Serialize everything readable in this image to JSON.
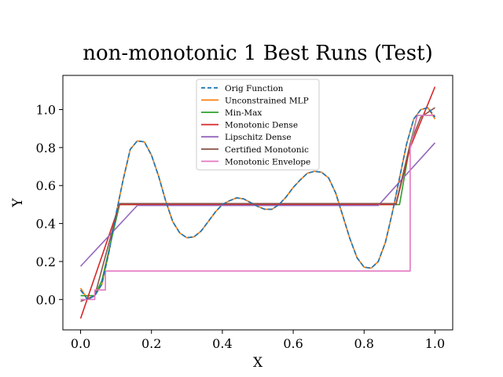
{
  "chart_data": {
    "type": "line",
    "title": "non-monotonic 1 Best Runs (Test)",
    "xlabel": "X",
    "ylabel": "Y",
    "xlim": [
      -0.05,
      1.05
    ],
    "ylim": [
      -0.16,
      1.18
    ],
    "xticks": [
      0.0,
      0.2,
      0.4,
      0.6,
      0.8,
      1.0
    ],
    "xtick_labels": [
      "0.0",
      "0.2",
      "0.4",
      "0.6",
      "0.8",
      "1.0"
    ],
    "yticks": [
      0.0,
      0.2,
      0.4,
      0.6,
      0.8,
      1.0
    ],
    "ytick_labels": [
      "0.0",
      "0.2",
      "0.4",
      "0.6",
      "0.8",
      "1.0"
    ],
    "grid": false,
    "legend_position": "top-center",
    "series": [
      {
        "name": "Orig Function",
        "color": "#1f77b4",
        "dash": true,
        "x": [
          0.0,
          0.02,
          0.04,
          0.06,
          0.08,
          0.1,
          0.12,
          0.14,
          0.16,
          0.18,
          0.2,
          0.22,
          0.24,
          0.26,
          0.28,
          0.3,
          0.32,
          0.34,
          0.36,
          0.38,
          0.4,
          0.42,
          0.44,
          0.46,
          0.48,
          0.5,
          0.52,
          0.54,
          0.56,
          0.58,
          0.6,
          0.62,
          0.64,
          0.66,
          0.68,
          0.7,
          0.72,
          0.74,
          0.76,
          0.78,
          0.8,
          0.82,
          0.84,
          0.86,
          0.88,
          0.9,
          0.92,
          0.94,
          0.96,
          0.98,
          1.0
        ],
        "y": [
          0.05,
          0.0,
          0.02,
          0.08,
          0.25,
          0.45,
          0.63,
          0.79,
          0.835,
          0.83,
          0.76,
          0.65,
          0.52,
          0.41,
          0.35,
          0.325,
          0.33,
          0.36,
          0.41,
          0.46,
          0.5,
          0.52,
          0.535,
          0.53,
          0.51,
          0.49,
          0.475,
          0.475,
          0.5,
          0.54,
          0.59,
          0.63,
          0.665,
          0.675,
          0.67,
          0.64,
          0.56,
          0.44,
          0.32,
          0.22,
          0.17,
          0.165,
          0.2,
          0.3,
          0.46,
          0.64,
          0.82,
          0.95,
          1.0,
          1.01,
          0.96
        ]
      },
      {
        "name": "Unconstrained MLP",
        "color": "#ff7f0e",
        "x": [
          0.0,
          0.02,
          0.04,
          0.06,
          0.08,
          0.1,
          0.12,
          0.14,
          0.16,
          0.18,
          0.2,
          0.22,
          0.24,
          0.26,
          0.28,
          0.3,
          0.32,
          0.34,
          0.36,
          0.38,
          0.4,
          0.42,
          0.44,
          0.46,
          0.48,
          0.5,
          0.52,
          0.54,
          0.56,
          0.58,
          0.6,
          0.62,
          0.64,
          0.66,
          0.68,
          0.7,
          0.72,
          0.74,
          0.76,
          0.78,
          0.8,
          0.82,
          0.84,
          0.86,
          0.88,
          0.9,
          0.92,
          0.94,
          0.96,
          0.98,
          1.0
        ],
        "y": [
          0.06,
          0.0,
          0.02,
          0.08,
          0.25,
          0.45,
          0.63,
          0.79,
          0.835,
          0.83,
          0.76,
          0.65,
          0.52,
          0.41,
          0.35,
          0.325,
          0.33,
          0.36,
          0.41,
          0.46,
          0.5,
          0.52,
          0.535,
          0.53,
          0.51,
          0.49,
          0.475,
          0.475,
          0.5,
          0.54,
          0.59,
          0.63,
          0.665,
          0.675,
          0.67,
          0.64,
          0.56,
          0.44,
          0.32,
          0.22,
          0.17,
          0.165,
          0.2,
          0.3,
          0.46,
          0.64,
          0.82,
          0.95,
          1.0,
          1.01,
          0.95
        ]
      },
      {
        "name": "Min-Max",
        "color": "#2ca02c",
        "x": [
          0.0,
          0.04,
          0.06,
          0.11,
          0.9,
          0.93,
          0.95,
          1.0
        ],
        "y": [
          0.02,
          0.02,
          0.1,
          0.5,
          0.5,
          0.82,
          0.97,
          0.97
        ]
      },
      {
        "name": "Monotonic Dense",
        "color": "#d62728",
        "x": [
          0.0,
          0.11,
          0.89,
          0.93,
          1.0
        ],
        "y": [
          -0.1,
          0.5,
          0.5,
          0.8,
          1.12
        ]
      },
      {
        "name": "Lipschitz Dense",
        "color": "#9467bd",
        "x": [
          0.0,
          0.16,
          0.84,
          1.0
        ],
        "y": [
          0.175,
          0.495,
          0.495,
          0.825
        ]
      },
      {
        "name": "Certified Monotonic",
        "color": "#8c564b",
        "x": [
          0.0,
          0.04,
          0.11,
          0.89,
          0.93,
          0.96,
          1.0
        ],
        "y": [
          -0.01,
          0.02,
          0.505,
          0.505,
          0.82,
          0.96,
          1.01
        ]
      },
      {
        "name": "Monotonic Envelope",
        "color": "#e377c2",
        "x": [
          0.0,
          0.04,
          0.04,
          0.07,
          0.07,
          0.93,
          0.93,
          0.95,
          1.0
        ],
        "y": [
          0.0,
          0.0,
          0.05,
          0.05,
          0.15,
          0.15,
          0.8,
          0.97,
          0.97
        ]
      }
    ]
  }
}
